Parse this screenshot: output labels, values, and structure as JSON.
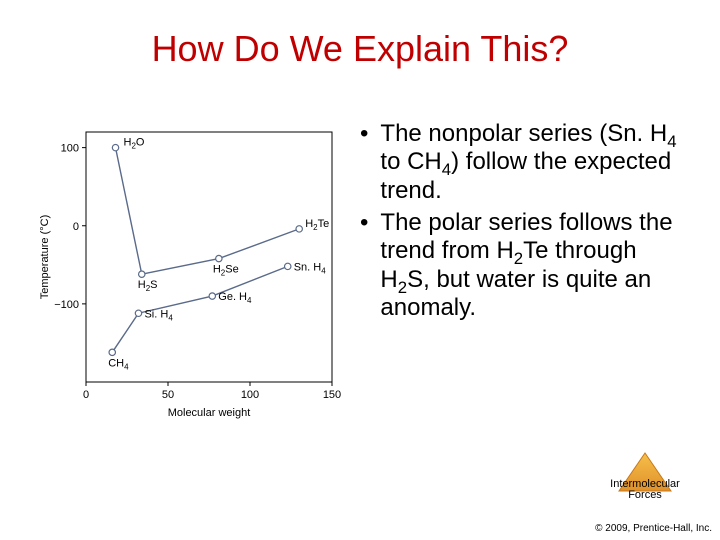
{
  "title": "How Do We Explain This?",
  "title_color": "#c00000",
  "bullets": [
    "The nonpolar series (Sn. H|4| to CH|4|) follow the expected trend.",
    "The polar series follows the trend from H|2|Te through H|2|S, but water is quite an anomaly."
  ],
  "chart": {
    "type": "line-scatter",
    "x_label": "Molecular weight",
    "y_label": "Temperature (°C)",
    "xlim": [
      0,
      150
    ],
    "ylim": [
      -200,
      120
    ],
    "x_ticks": [
      0,
      50,
      100,
      150
    ],
    "y_ticks": [
      -100,
      0,
      100
    ],
    "line_color": "#5a6a8a",
    "line_width": 1.4,
    "marker_fill": "#ffffff",
    "marker_stroke": "#5a6a8a",
    "marker_radius": 3.2,
    "background": "#ffffff",
    "frame_color": "#000000",
    "series": [
      {
        "name": "polar",
        "points": [
          {
            "x": 18,
            "y": 100,
            "label": "H|2|O",
            "label_dx": 8,
            "label_dy": -2
          },
          {
            "x": 34,
            "y": -62,
            "label": "H|2|S",
            "label_dx": -4,
            "label_dy": 14
          },
          {
            "x": 81,
            "y": -42,
            "label": "H|2|Se",
            "label_dx": -6,
            "label_dy": 14
          },
          {
            "x": 130,
            "y": -4,
            "label": "H|2|Te",
            "label_dx": 6,
            "label_dy": -2
          }
        ]
      },
      {
        "name": "nonpolar",
        "points": [
          {
            "x": 16,
            "y": -162,
            "label": "CH|4|",
            "label_dx": -4,
            "label_dy": 14
          },
          {
            "x": 32,
            "y": -112,
            "label": "Si. H|4|",
            "label_dx": 6,
            "label_dy": 4
          },
          {
            "x": 77,
            "y": -90,
            "label": "Ge. H|4|",
            "label_dx": 6,
            "label_dy": 4
          },
          {
            "x": 123,
            "y": -52,
            "label": "Sn. H|4|",
            "label_dx": 6,
            "label_dy": 4
          }
        ]
      }
    ]
  },
  "badge": {
    "line1": "Intermolecular",
    "line2": "Forces",
    "fill_top": "#f6c04a",
    "fill_bottom": "#e0902a",
    "stroke": "#c87818"
  },
  "copyright": "© 2009, Prentice-Hall, Inc."
}
